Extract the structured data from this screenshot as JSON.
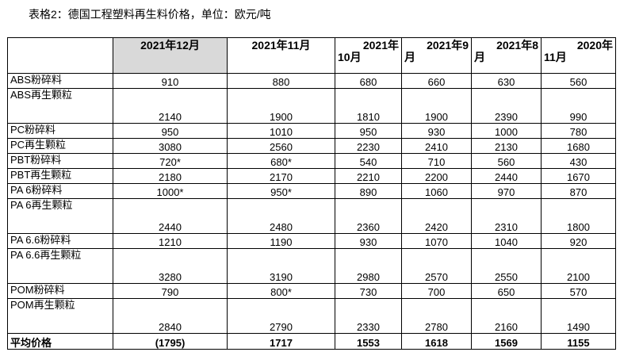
{
  "caption": "表格2：德国工程塑料再生料价格，单位：欧元/吨",
  "columns": [
    {
      "line1": "2021年12月",
      "line2": ""
    },
    {
      "line1": "2021年11月",
      "line2": ""
    },
    {
      "line1": "2021年",
      "line2": "10月"
    },
    {
      "line1": "2021年9",
      "line2": "月"
    },
    {
      "line1": "2021年8",
      "line2": "月"
    },
    {
      "line1": "2020年",
      "line2": "11月"
    }
  ],
  "rows": [
    {
      "label": "ABS粉碎料",
      "values": [
        "910",
        "880",
        "680",
        "660",
        "630",
        "560"
      ]
    },
    {
      "label": "ABS再生颗粒",
      "values": [
        "2140",
        "1900",
        "1810",
        "1900",
        "2390",
        "990"
      ]
    },
    {
      "label": "PC粉碎料",
      "values": [
        "950",
        "1010",
        "950",
        "930",
        "1000",
        "780"
      ]
    },
    {
      "label": "PC再生颗粒",
      "values": [
        "3080",
        "2560",
        "2230",
        "2410",
        "2130",
        "1680"
      ]
    },
    {
      "label": "PBT粉碎料",
      "values": [
        "720*",
        "680*",
        "540",
        "710",
        "560",
        "430"
      ]
    },
    {
      "label": "PBT再生颗粒",
      "values": [
        "2180",
        "2170",
        "2210",
        "2200",
        "2440",
        "1670"
      ]
    },
    {
      "label": "PA 6粉碎料",
      "values": [
        "1000*",
        "950*",
        "890",
        "1060",
        "970",
        "870"
      ]
    },
    {
      "label": "PA 6再生颗粒",
      "values": [
        "2440",
        "2480",
        "2360",
        "2420",
        "2310",
        "1800"
      ]
    },
    {
      "label": "PA 6.6粉碎料",
      "values": [
        "1210",
        "1190",
        "930",
        "1070",
        "1040",
        "920"
      ]
    },
    {
      "label": "PA 6.6再生颗粒",
      "values": [
        "3280",
        "3190",
        "2980",
        "2570",
        "2550",
        "2100"
      ]
    },
    {
      "label": "POM粉碎料",
      "values": [
        "790",
        "800*",
        "730",
        "700",
        "650",
        "570"
      ]
    },
    {
      "label": "POM再生颗粒",
      "values": [
        "2840",
        "2790",
        "2330",
        "2780",
        "2160",
        "1490"
      ]
    }
  ],
  "average": {
    "label": "平均价格",
    "values": [
      "(1795)",
      "1717",
      "1553",
      "1618",
      "1569",
      "1155"
    ]
  }
}
